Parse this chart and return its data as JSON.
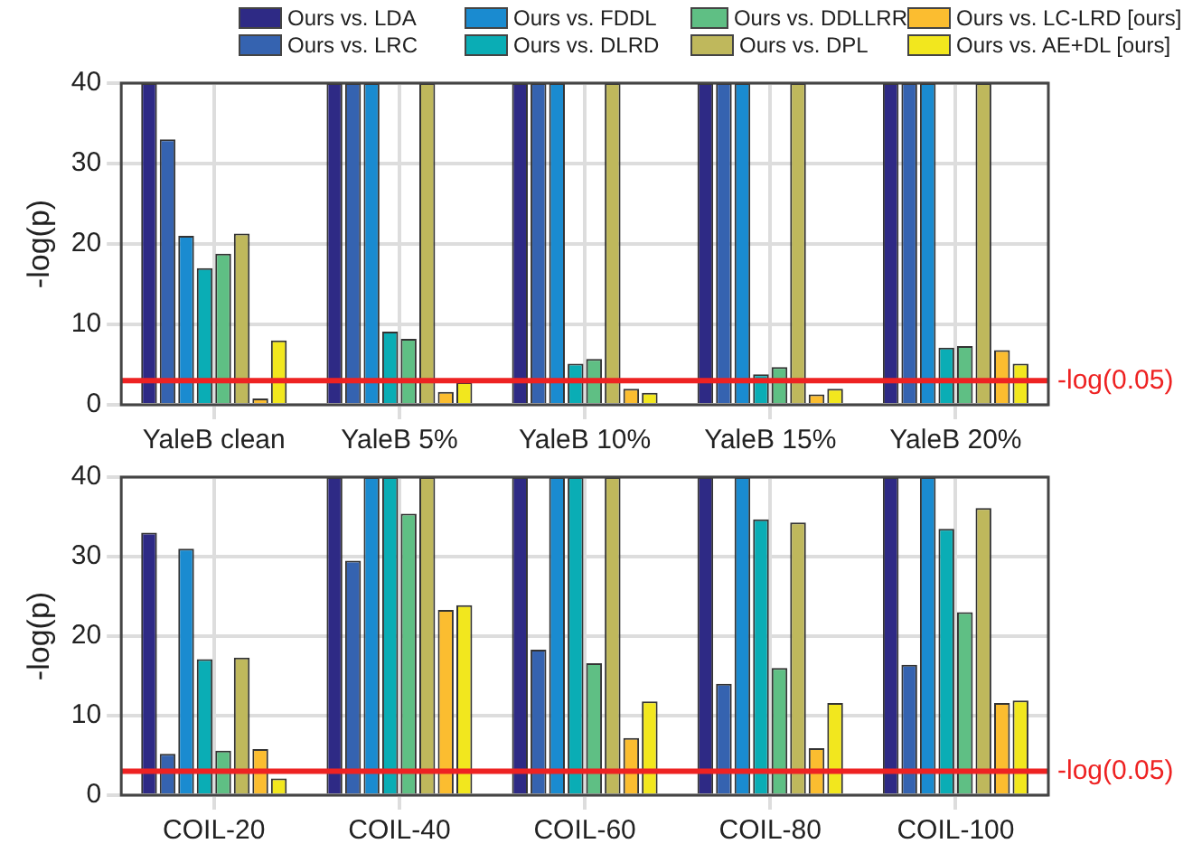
{
  "chart_data": [
    {
      "type": "bar",
      "categories": [
        "YaleB clean",
        "YaleB 5%",
        "YaleB 10%",
        "YaleB 15%",
        "YaleB 20%"
      ],
      "ylabel": "-log(p)",
      "ylim": [
        0,
        40
      ],
      "yticks": [
        0,
        10,
        20,
        30,
        40
      ],
      "grid": true,
      "legend": "top",
      "series": [
        {
          "name": "Ours vs. LDA",
          "color": "#2e2a85",
          "values": [
            40,
            40,
            40,
            40,
            40
          ]
        },
        {
          "name": "Ours vs. LRC",
          "color": "#3563b0",
          "values": [
            33,
            40,
            40,
            40,
            40
          ]
        },
        {
          "name": "Ours vs. FDDL",
          "color": "#1a8bd0",
          "values": [
            21,
            40,
            40,
            40,
            40
          ]
        },
        {
          "name": "Ours vs. DLRD",
          "color": "#0aadb5",
          "values": [
            17,
            9.1,
            5.1,
            3.8,
            7.1
          ]
        },
        {
          "name": "Ours vs. DDLLRR",
          "color": "#5fbf84",
          "values": [
            18.8,
            8.2,
            5.7,
            4.7,
            7.3
          ]
        },
        {
          "name": "Ours vs. DPL",
          "color": "#bfb85c",
          "values": [
            21.3,
            40,
            40,
            40,
            40
          ]
        },
        {
          "name": "Ours vs. LC-LRD [ours]",
          "color": "#fbbd30",
          "values": [
            0.8,
            1.6,
            2.0,
            1.3,
            6.8
          ]
        },
        {
          "name": "Ours vs. AE+DL [ours]",
          "color": "#f2e71e",
          "values": [
            8,
            2.8,
            1.5,
            2.0,
            5.1
          ]
        }
      ],
      "ref_lines": [
        {
          "axis": "y",
          "value": 3,
          "label": "-log(0.05)",
          "color": "#ee2222"
        }
      ]
    },
    {
      "type": "bar",
      "categories": [
        "COIL-20",
        "COIL-40",
        "COIL-60",
        "COIL-80",
        "COIL-100"
      ],
      "ylabel": "-log(p)",
      "ylim": [
        0,
        40
      ],
      "yticks": [
        0,
        10,
        20,
        30,
        40
      ],
      "grid": true,
      "series": [
        {
          "color": "#2e2a85",
          "values": [
            33,
            40,
            40,
            40,
            40
          ]
        },
        {
          "color": "#3563b0",
          "values": [
            5.2,
            29.5,
            18.3,
            14,
            16.4
          ]
        },
        {
          "color": "#1a8bd0",
          "values": [
            31,
            40,
            40,
            40,
            40
          ]
        },
        {
          "color": "#0aadb5",
          "values": [
            17.1,
            40,
            40,
            34.7,
            33.5
          ]
        },
        {
          "color": "#5fbf84",
          "values": [
            5.6,
            35.4,
            16.6,
            16,
            23
          ]
        },
        {
          "color": "#bfb85c",
          "values": [
            17.3,
            40,
            40,
            34.3,
            36.1
          ]
        },
        {
          "color": "#fbbd30",
          "values": [
            5.8,
            23.3,
            7.2,
            5.9,
            11.6
          ]
        },
        {
          "color": "#f2e71e",
          "values": [
            2.1,
            23.9,
            11.8,
            11.6,
            11.9
          ]
        }
      ],
      "ref_lines": [
        {
          "axis": "y",
          "value": 3,
          "label": "-log(0.05)",
          "color": "#ee2222"
        }
      ]
    }
  ]
}
